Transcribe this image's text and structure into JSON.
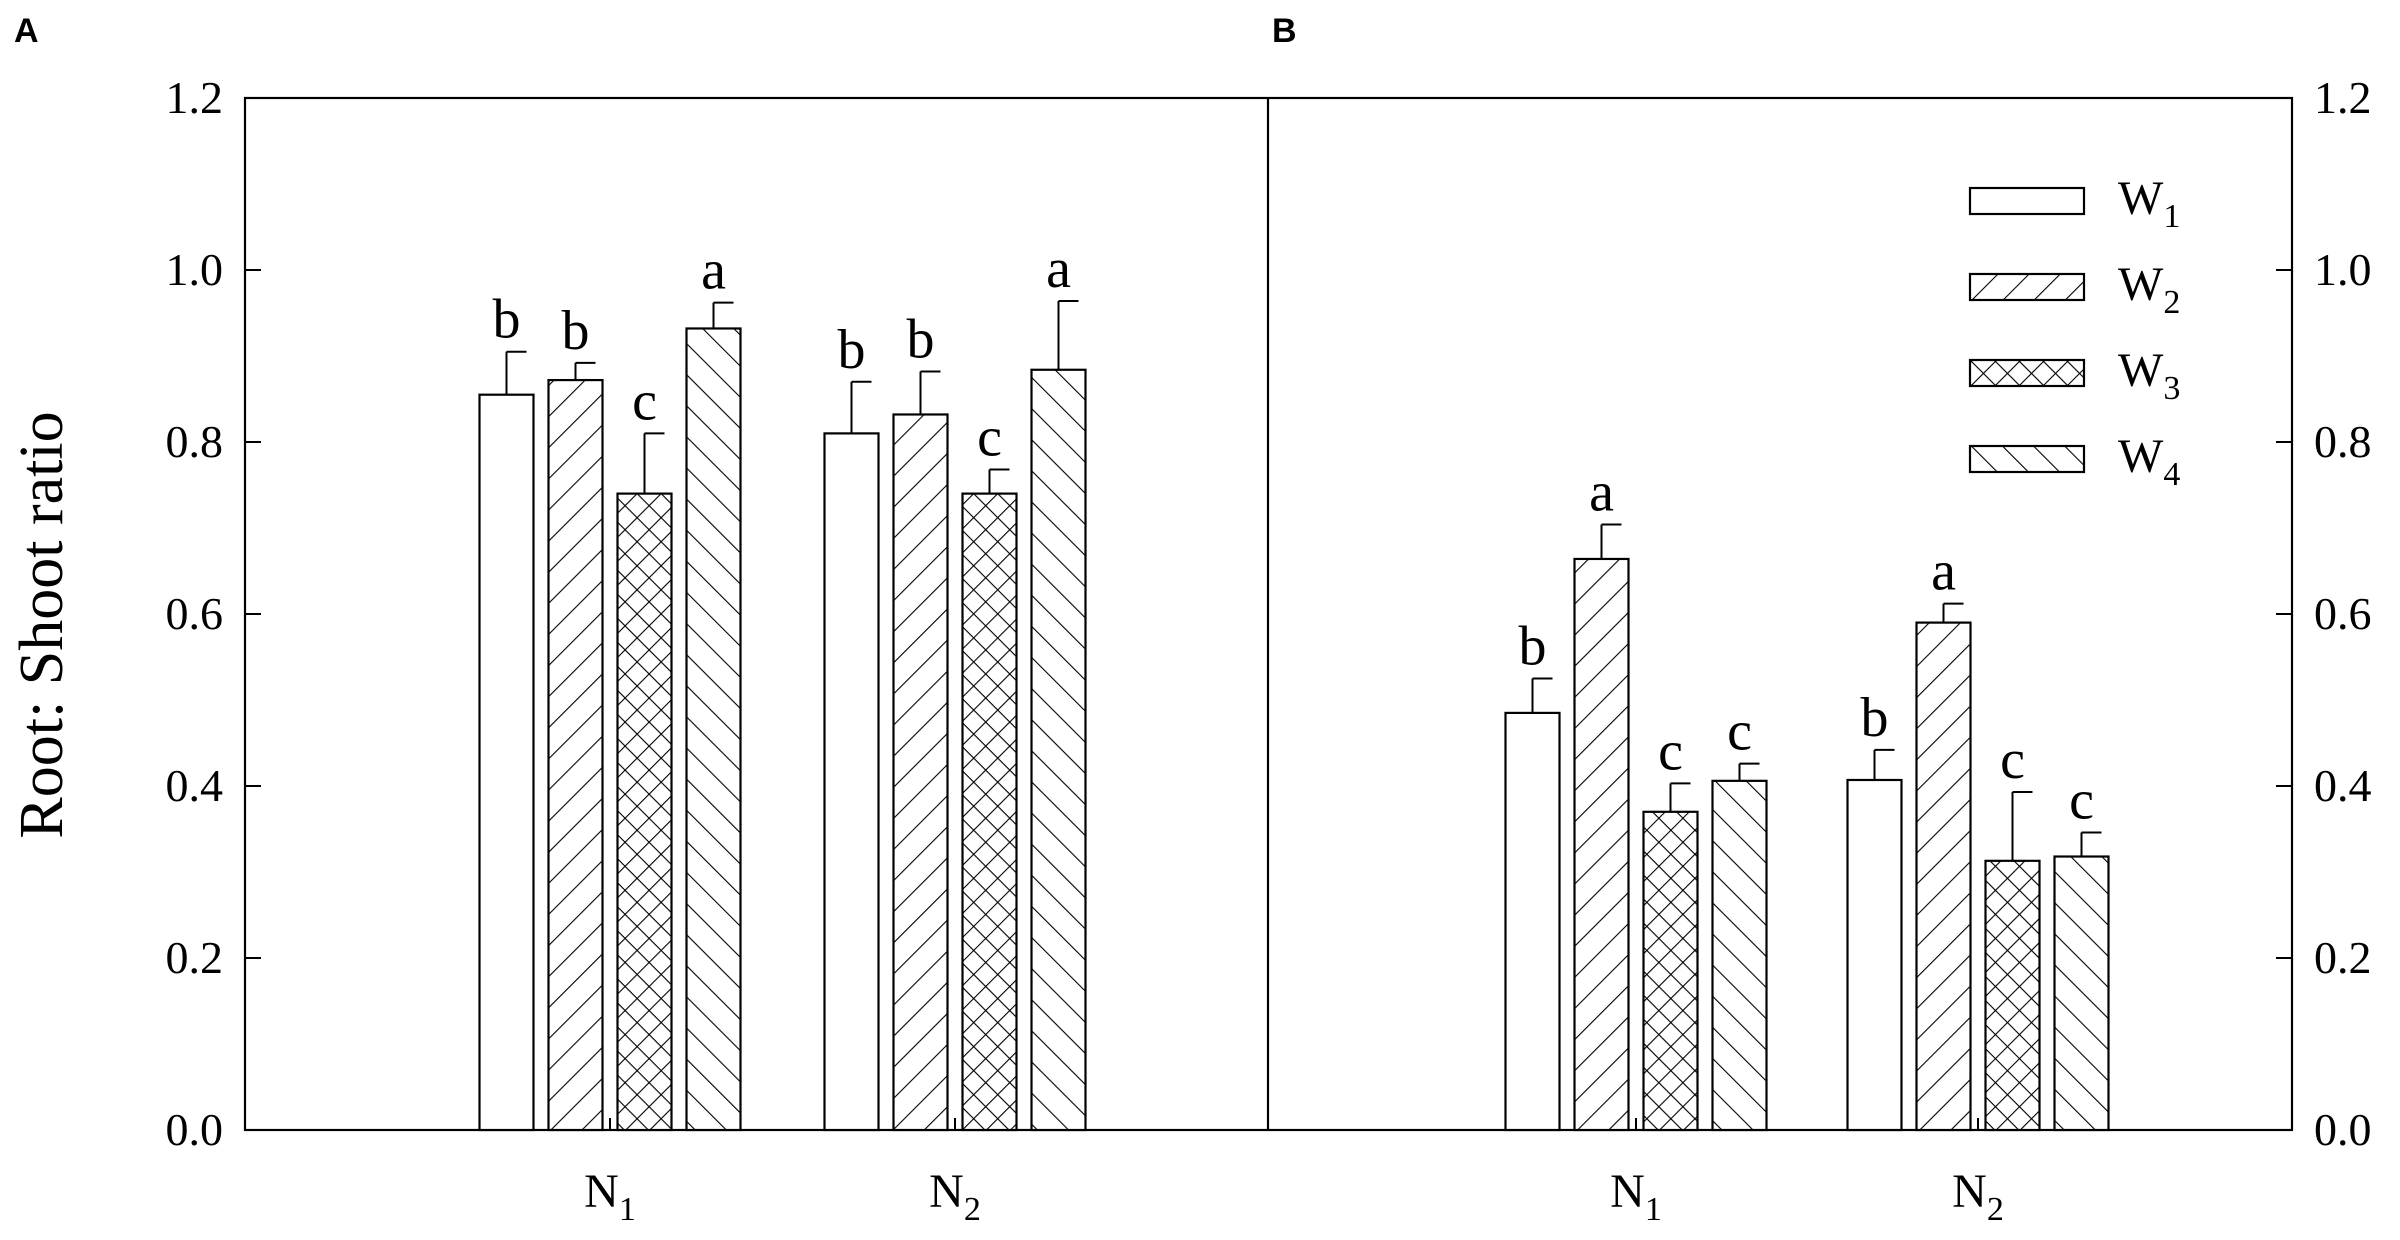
{
  "panel_labels": [
    "A",
    "B"
  ],
  "ylabel": "Root: Shoot ratio",
  "legend": {
    "placement": "top-right of panel B",
    "items": [
      {
        "main": "W",
        "sub": "1",
        "pattern": "none"
      },
      {
        "main": "W",
        "sub": "2",
        "pattern": "forward-diagonal"
      },
      {
        "main": "W",
        "sub": "3",
        "pattern": "crosshatch"
      },
      {
        "main": "W",
        "sub": "4",
        "pattern": "back-diagonal"
      }
    ]
  },
  "chart_data": [
    {
      "type": "bar",
      "panel": "A",
      "categories": [
        "N1",
        "N2"
      ],
      "category_labels": [
        {
          "main": "N",
          "sub": "1"
        },
        {
          "main": "N",
          "sub": "2"
        }
      ],
      "ylim": [
        0,
        1.2
      ],
      "yticks": [
        "0.0",
        "0.2",
        "0.4",
        "0.6",
        "0.8",
        "1.0",
        "1.2"
      ],
      "yaxis_side": "left",
      "series": [
        {
          "name": "W1",
          "values": [
            0.855,
            0.81
          ],
          "errors": [
            0.05,
            0.06
          ],
          "letters": [
            "b",
            "b"
          ]
        },
        {
          "name": "W2",
          "values": [
            0.872,
            0.832
          ],
          "errors": [
            0.02,
            0.05
          ],
          "letters": [
            "b",
            "b"
          ]
        },
        {
          "name": "W3",
          "values": [
            0.74,
            0.74
          ],
          "errors": [
            0.07,
            0.028
          ],
          "letters": [
            "c",
            "c"
          ]
        },
        {
          "name": "W4",
          "values": [
            0.932,
            0.884
          ],
          "errors": [
            0.03,
            0.08
          ],
          "letters": [
            "a",
            "a"
          ]
        }
      ]
    },
    {
      "type": "bar",
      "panel": "B",
      "categories": [
        "N1",
        "N2"
      ],
      "category_labels": [
        {
          "main": "N",
          "sub": "1"
        },
        {
          "main": "N",
          "sub": "2"
        }
      ],
      "ylim": [
        0,
        1.2
      ],
      "yticks": [
        "0.0",
        "0.2",
        "0.4",
        "0.6",
        "0.8",
        "1.0",
        "1.2"
      ],
      "yaxis_side": "right",
      "series": [
        {
          "name": "W1",
          "values": [
            0.485,
            0.407
          ],
          "errors": [
            0.04,
            0.035
          ],
          "letters": [
            "b",
            "b"
          ]
        },
        {
          "name": "W2",
          "values": [
            0.664,
            0.59
          ],
          "errors": [
            0.04,
            0.022
          ],
          "letters": [
            "a",
            "a"
          ]
        },
        {
          "name": "W3",
          "values": [
            0.37,
            0.313
          ],
          "errors": [
            0.033,
            0.08
          ],
          "letters": [
            "c",
            "c"
          ]
        },
        {
          "name": "W4",
          "values": [
            0.406,
            0.318
          ],
          "errors": [
            0.02,
            0.028
          ],
          "letters": [
            "c",
            "c"
          ]
        }
      ]
    }
  ]
}
